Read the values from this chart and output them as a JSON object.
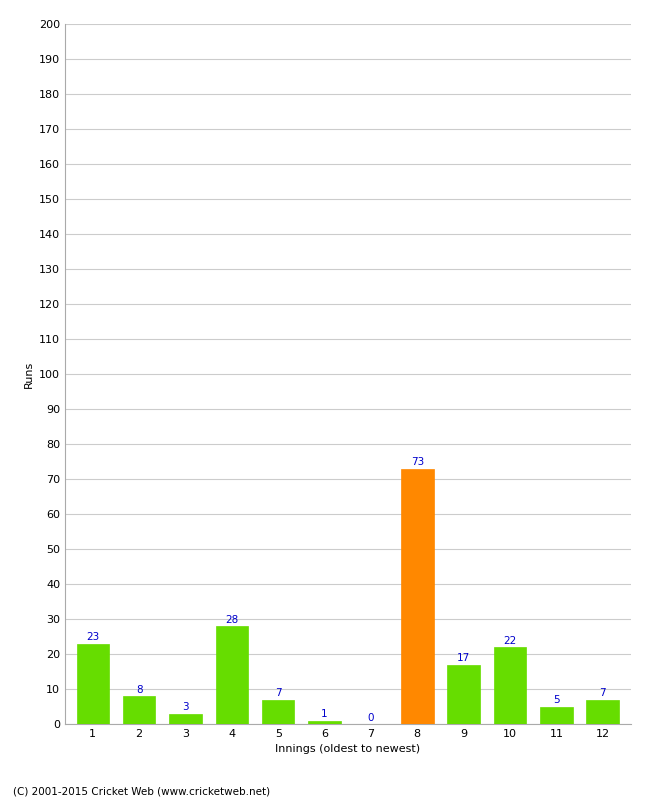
{
  "innings": [
    1,
    2,
    3,
    4,
    5,
    6,
    7,
    8,
    9,
    10,
    11,
    12
  ],
  "runs": [
    23,
    8,
    3,
    28,
    7,
    1,
    0,
    73,
    17,
    22,
    5,
    7
  ],
  "bar_colors": [
    "#66dd00",
    "#66dd00",
    "#66dd00",
    "#66dd00",
    "#66dd00",
    "#66dd00",
    "#66dd00",
    "#ff8800",
    "#66dd00",
    "#66dd00",
    "#66dd00",
    "#66dd00"
  ],
  "label_color": "#0000cc",
  "ylabel": "Runs",
  "xlabel": "Innings (oldest to newest)",
  "ylim": [
    0,
    200
  ],
  "yticks": [
    0,
    10,
    20,
    30,
    40,
    50,
    60,
    70,
    80,
    90,
    100,
    110,
    120,
    130,
    140,
    150,
    160,
    170,
    180,
    190,
    200
  ],
  "footer": "(C) 2001-2015 Cricket Web (www.cricketweb.net)",
  "background_color": "#ffffff",
  "grid_color": "#cccccc",
  "label_fontsize": 7.5,
  "axis_label_fontsize": 8,
  "tick_label_fontsize": 8,
  "footer_fontsize": 7.5,
  "bar_width": 0.7
}
